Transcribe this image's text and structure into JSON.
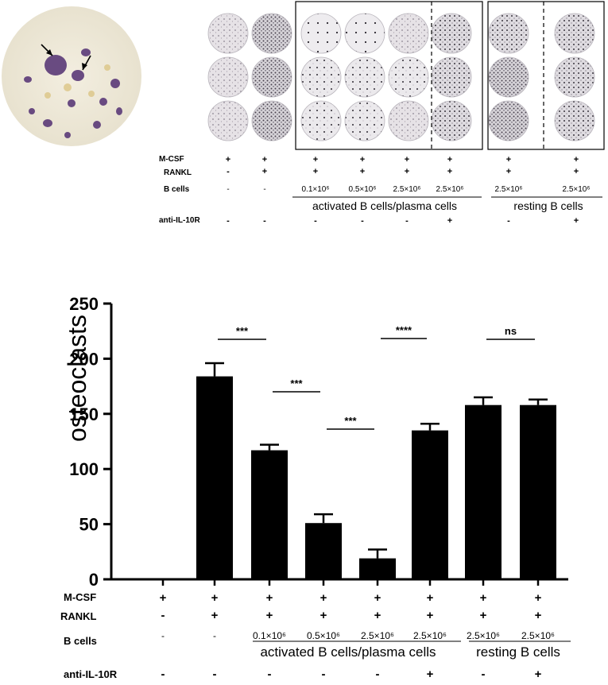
{
  "top_panel": {
    "rows": {
      "mcsf": {
        "label": "M-CSF",
        "values": [
          "+",
          "+",
          "+",
          "+",
          "+",
          "+",
          "+",
          "+"
        ]
      },
      "rankl": {
        "label": "RANKL",
        "values": [
          "-",
          "+",
          "+",
          "+",
          "+",
          "+",
          "+",
          "+"
        ]
      },
      "bcells": {
        "label": "B cells",
        "values": [
          "-",
          "-",
          "0.1×10⁶",
          "0.5×10⁶",
          "2.5×10⁶",
          "2.5×10⁶",
          "2.5×10⁶",
          "2.5×10⁶"
        ]
      },
      "anti": {
        "label": "anti-IL-10R",
        "values": [
          "-",
          "-",
          "-",
          "-",
          "-",
          "+",
          "-",
          "+"
        ]
      }
    },
    "group_activated": "activated B cells/plasma cells",
    "group_resting": "resting B cells"
  },
  "chart_data": {
    "type": "bar",
    "ylabel": "osteoclasts",
    "ylim": [
      0,
      250
    ],
    "yticks": [
      "0",
      "50",
      "100",
      "150",
      "200",
      "250"
    ],
    "values": [
      0,
      184,
      117,
      51,
      19,
      135,
      158,
      158
    ],
    "errors": [
      0,
      12,
      5,
      8,
      8,
      6,
      7,
      5
    ],
    "colors": {
      "bar": "#000000"
    },
    "significance": [
      {
        "label": "***",
        "from": 1,
        "to": 2
      },
      {
        "label": "***",
        "from": 2,
        "to": 3
      },
      {
        "label": "***",
        "from": 3,
        "to": 4
      },
      {
        "label": "****",
        "from": 4,
        "to": 5
      },
      {
        "label": "ns",
        "from": 6,
        "to": 7
      }
    ],
    "condition_rows": {
      "mcsf": {
        "label": "M-CSF",
        "values": [
          "+",
          "+",
          "+",
          "+",
          "+",
          "+",
          "+",
          "+"
        ]
      },
      "rankl": {
        "label": "RANKL",
        "values": [
          "-",
          "+",
          "+",
          "+",
          "+",
          "+",
          "+",
          "+"
        ]
      },
      "bcells": {
        "label": "B cells",
        "values": [
          "-",
          "-",
          "0.1×10⁶",
          "0.5×10⁶",
          "2.5×10⁶",
          "2.5×10⁶",
          "2.5×10⁶",
          "2.5×10⁶"
        ]
      },
      "anti": {
        "label": "anti-IL-10R",
        "values": [
          "-",
          "-",
          "-",
          "-",
          "-",
          "+",
          "-",
          "+"
        ]
      }
    },
    "group_activated": "activated B cells/plasma cells",
    "group_resting": "resting B cells"
  }
}
